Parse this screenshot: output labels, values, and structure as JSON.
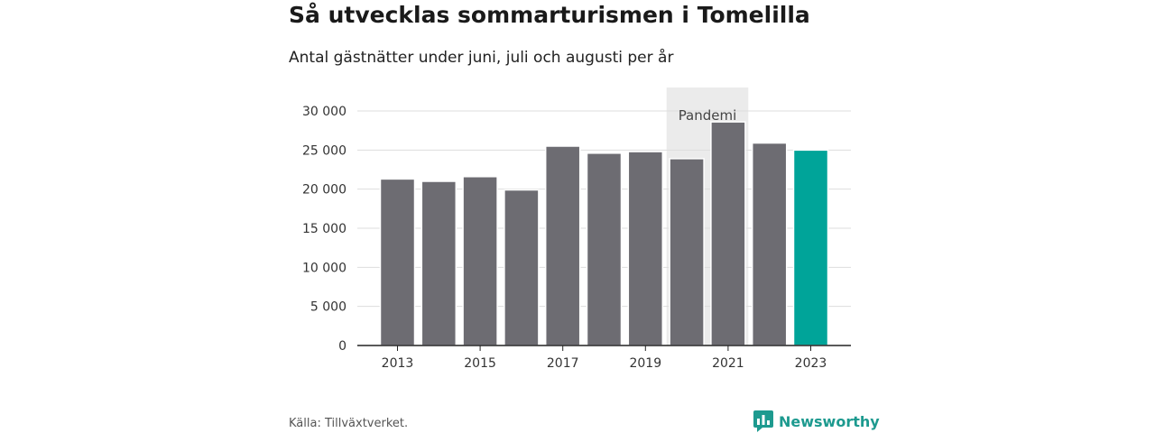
{
  "header": {
    "title": "Så utvecklas sommarturismen i Tomelilla",
    "subtitle": "Antal gästnätter under juni, juli och augusti per år"
  },
  "chart_data": {
    "type": "bar",
    "categories": [
      "2013",
      "2014",
      "2015",
      "2016",
      "2017",
      "2018",
      "2019",
      "2020",
      "2021",
      "2022",
      "2023"
    ],
    "values": [
      21300,
      21000,
      21600,
      19900,
      25500,
      24600,
      24800,
      23900,
      28600,
      25900,
      25000
    ],
    "ylim": [
      0,
      30000
    ],
    "yticks": [
      0,
      5000,
      10000,
      15000,
      20000,
      25000,
      30000
    ],
    "ytick_labels": [
      "0",
      "5 000",
      "10 000",
      "15 000",
      "20 000",
      "25 000",
      "30 000"
    ],
    "xtick_labels": [
      "2013",
      "2015",
      "2017",
      "2019",
      "2021",
      "2023"
    ],
    "xtick_categories": [
      "2013",
      "2015",
      "2017",
      "2019",
      "2021",
      "2023"
    ],
    "grid": true,
    "bar_color": "#6d6c72",
    "highlight_color": "#00a499",
    "highlight_category": "2023",
    "annotation": {
      "label": "Pandemi",
      "from_category": "2020",
      "to_category": "2021",
      "color": "#ebebeb"
    }
  },
  "footer": {
    "source": "Källa: Tillväxtverket.",
    "brand": "Newsworthy",
    "brand_color": "#1d9a8f",
    "brand_icon": "bar-chart-speech-icon"
  }
}
